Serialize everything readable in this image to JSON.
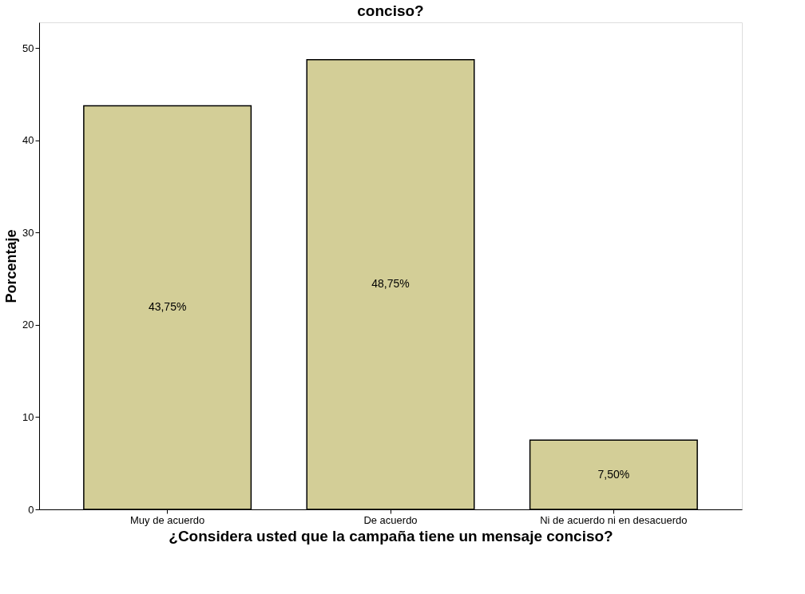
{
  "chart_data": {
    "type": "bar",
    "title": "conciso?",
    "xlabel": "¿Considera usted que la campaña tiene un mensaje conciso?",
    "ylabel": "Porcentaje",
    "categories": [
      "Muy de acuerdo",
      "De acuerdo",
      "Ni de acuerdo ni en desacuerdo"
    ],
    "values": [
      43.75,
      48.75,
      7.5
    ],
    "value_labels": [
      "43,75%",
      "48,75%",
      "7,50%"
    ],
    "color": "#d3ce97",
    "ylim": [
      0,
      52.8
    ],
    "yticks": [
      0,
      10,
      20,
      30,
      40,
      50
    ],
    "grid": false
  }
}
